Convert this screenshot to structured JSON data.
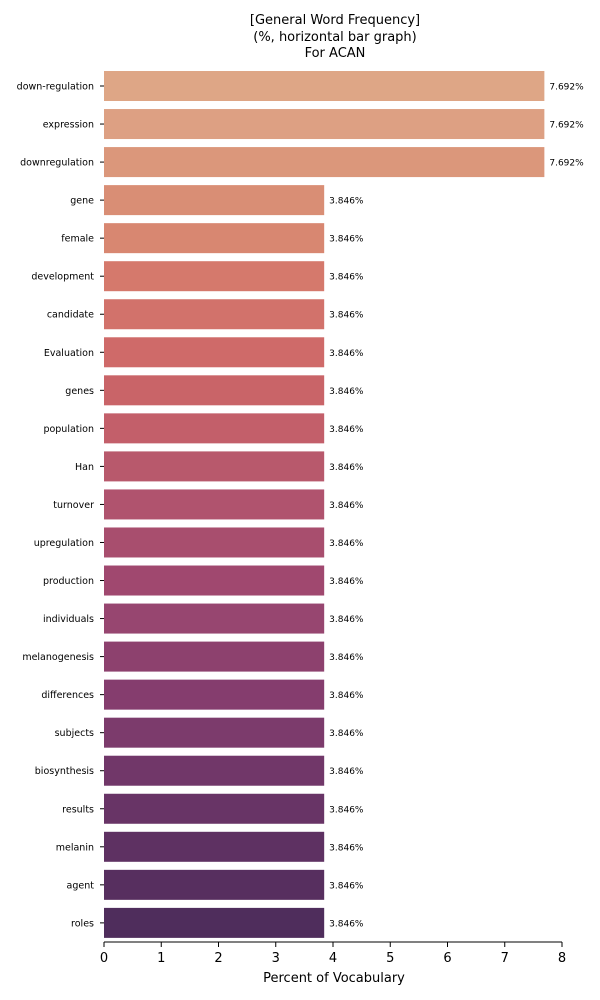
{
  "chart_data": {
    "type": "bar",
    "orientation": "horizontal",
    "title_lines": [
      "[General Word Frequency]",
      "(%, horizontal bar graph)",
      "For ACAN"
    ],
    "xlabel": "Percent of Vocabulary",
    "ylabel": "",
    "xlim": [
      0,
      8
    ],
    "xticks": [
      0,
      1,
      2,
      3,
      4,
      5,
      6,
      7,
      8
    ],
    "grid": false,
    "categories": [
      "down-regulation",
      "expression",
      "downregulation",
      "gene",
      "female",
      "development",
      "candidate",
      "Evaluation",
      "genes",
      "population",
      "Han",
      "turnover",
      "upregulation",
      "production",
      "individuals",
      "melanogenesis",
      "differences",
      "subjects",
      "biosynthesis",
      "results",
      "melanin",
      "agent",
      "roles"
    ],
    "values": [
      7.692,
      7.692,
      7.692,
      3.846,
      3.846,
      3.846,
      3.846,
      3.846,
      3.846,
      3.846,
      3.846,
      3.846,
      3.846,
      3.846,
      3.846,
      3.846,
      3.846,
      3.846,
      3.846,
      3.846,
      3.846,
      3.846,
      3.846
    ],
    "value_labels": [
      "7.692%",
      "7.692%",
      "7.692%",
      "3.846%",
      "3.846%",
      "3.846%",
      "3.846%",
      "3.846%",
      "3.846%",
      "3.846%",
      "3.846%",
      "3.846%",
      "3.846%",
      "3.846%",
      "3.846%",
      "3.846%",
      "3.846%",
      "3.846%",
      "3.846%",
      "3.846%",
      "3.846%",
      "3.846%",
      "3.846%"
    ],
    "colors": [
      "#dea686",
      "#dda083",
      "#db977b",
      "#d98e75",
      "#d88771",
      "#d5796c",
      "#d2726b",
      "#cf6a69",
      "#c96468",
      "#c35f6a",
      "#b8596c",
      "#b0536e",
      "#a84e6e",
      "#a0486f",
      "#974670",
      "#8d416e",
      "#853d6e",
      "#7c3b6c",
      "#713769",
      "#683466",
      "#5e3162",
      "#572f5f",
      "#4f2d5c"
    ]
  }
}
